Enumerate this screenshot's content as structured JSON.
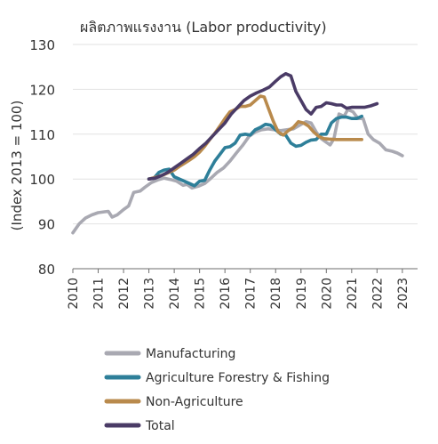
{
  "chart_data": {
    "type": "line",
    "title": "ผลิตภาพแรงงาน (Labor productivity)",
    "ylabel": "(Index 2013 = 100)",
    "xlabel": "",
    "ylim": [
      80,
      130
    ],
    "xlim": [
      2010,
      2023.6
    ],
    "yticks": [
      80,
      90,
      100,
      110,
      120,
      130
    ],
    "xticks": [
      "2010",
      "2011",
      "2012",
      "2013",
      "2014",
      "2015",
      "2016",
      "2017",
      "2018",
      "2019",
      "2020",
      "2021",
      "2022",
      "2023"
    ],
    "grid": "horizontal",
    "legend_position": "bottom",
    "series": [
      {
        "name": "Manufacturing",
        "color": "#a9a9b2",
        "points": [
          [
            2010.0,
            88.0
          ],
          [
            2010.25,
            90.0
          ],
          [
            2010.5,
            91.3
          ],
          [
            2010.75,
            92.0
          ],
          [
            2011.0,
            92.5
          ],
          [
            2011.25,
            92.7
          ],
          [
            2011.4,
            92.8
          ],
          [
            2011.55,
            91.5
          ],
          [
            2011.75,
            92.0
          ],
          [
            2012.0,
            93.2
          ],
          [
            2012.2,
            94.0
          ],
          [
            2012.4,
            97.0
          ],
          [
            2012.65,
            97.3
          ],
          [
            2012.85,
            98.2
          ],
          [
            2013.1,
            99.2
          ],
          [
            2013.35,
            99.8
          ],
          [
            2013.6,
            100.2
          ],
          [
            2013.85,
            99.9
          ],
          [
            2014.1,
            99.5
          ],
          [
            2014.35,
            98.6
          ],
          [
            2014.5,
            98.8
          ],
          [
            2014.7,
            98.0
          ],
          [
            2014.95,
            98.4
          ],
          [
            2015.2,
            99.0
          ],
          [
            2015.45,
            100.2
          ],
          [
            2015.7,
            101.5
          ],
          [
            2015.95,
            102.5
          ],
          [
            2016.2,
            104.0
          ],
          [
            2016.45,
            105.8
          ],
          [
            2016.7,
            107.5
          ],
          [
            2016.95,
            109.5
          ],
          [
            2017.2,
            110.5
          ],
          [
            2017.45,
            111.0
          ],
          [
            2017.7,
            111.2
          ],
          [
            2017.95,
            111.0
          ],
          [
            2018.2,
            110.8
          ],
          [
            2018.45,
            111.0
          ],
          [
            2018.7,
            111.2
          ],
          [
            2018.95,
            112.0
          ],
          [
            2019.2,
            112.8
          ],
          [
            2019.4,
            112.5
          ],
          [
            2019.6,
            110.5
          ],
          [
            2019.8,
            109.0
          ],
          [
            2020.0,
            108.2
          ],
          [
            2020.15,
            107.6
          ],
          [
            2020.3,
            109.0
          ],
          [
            2020.5,
            114.5
          ],
          [
            2020.7,
            114.0
          ],
          [
            2020.85,
            115.5
          ],
          [
            2021.05,
            115.0
          ],
          [
            2021.25,
            113.5
          ],
          [
            2021.45,
            113.5
          ],
          [
            2021.65,
            110.0
          ],
          [
            2021.85,
            108.8
          ],
          [
            2022.1,
            108.0
          ],
          [
            2022.35,
            106.5
          ],
          [
            2022.6,
            106.2
          ],
          [
            2022.8,
            105.8
          ],
          [
            2023.0,
            105.2
          ]
        ]
      },
      {
        "name": "Agriculture Forestry & Fishing",
        "color": "#2e7f99",
        "points": [
          [
            2013.0,
            100.0
          ],
          [
            2013.2,
            100.2
          ],
          [
            2013.4,
            101.5
          ],
          [
            2013.6,
            102.0
          ],
          [
            2013.8,
            102.2
          ],
          [
            2014.0,
            100.5
          ],
          [
            2014.2,
            100.0
          ],
          [
            2014.4,
            99.5
          ],
          [
            2014.6,
            99.0
          ],
          [
            2014.8,
            98.5
          ],
          [
            2015.0,
            99.5
          ],
          [
            2015.2,
            99.7
          ],
          [
            2015.4,
            102.0
          ],
          [
            2015.6,
            104.0
          ],
          [
            2015.8,
            105.5
          ],
          [
            2016.0,
            107.0
          ],
          [
            2016.2,
            107.2
          ],
          [
            2016.4,
            108.0
          ],
          [
            2016.6,
            109.8
          ],
          [
            2016.8,
            110.0
          ],
          [
            2017.0,
            109.8
          ],
          [
            2017.2,
            111.0
          ],
          [
            2017.4,
            111.5
          ],
          [
            2017.6,
            112.2
          ],
          [
            2017.8,
            112.0
          ],
          [
            2018.0,
            111.0
          ],
          [
            2018.2,
            110.0
          ],
          [
            2018.4,
            109.8
          ],
          [
            2018.6,
            108.0
          ],
          [
            2018.8,
            107.3
          ],
          [
            2019.0,
            107.5
          ],
          [
            2019.2,
            108.2
          ],
          [
            2019.4,
            108.7
          ],
          [
            2019.6,
            108.8
          ],
          [
            2019.8,
            110.0
          ],
          [
            2020.0,
            110.0
          ],
          [
            2020.2,
            112.5
          ],
          [
            2020.4,
            113.5
          ],
          [
            2020.6,
            113.8
          ],
          [
            2020.8,
            113.8
          ],
          [
            2021.0,
            113.5
          ],
          [
            2021.2,
            113.5
          ],
          [
            2021.4,
            114.0
          ]
        ]
      },
      {
        "name": "Non-Agriculture",
        "color": "#b98a4c",
        "points": [
          [
            2013.0,
            100.0
          ],
          [
            2013.2,
            100.3
          ],
          [
            2013.4,
            100.6
          ],
          [
            2013.6,
            101.0
          ],
          [
            2013.8,
            101.5
          ],
          [
            2014.0,
            102.0
          ],
          [
            2014.2,
            102.8
          ],
          [
            2014.4,
            103.5
          ],
          [
            2014.6,
            104.2
          ],
          [
            2014.8,
            105.0
          ],
          [
            2015.0,
            106.0
          ],
          [
            2015.2,
            107.3
          ],
          [
            2015.4,
            108.8
          ],
          [
            2015.6,
            110.2
          ],
          [
            2015.8,
            111.8
          ],
          [
            2016.0,
            113.5
          ],
          [
            2016.2,
            115.0
          ],
          [
            2016.4,
            115.5
          ],
          [
            2016.6,
            116.2
          ],
          [
            2016.8,
            116.2
          ],
          [
            2017.0,
            116.5
          ],
          [
            2017.2,
            117.5
          ],
          [
            2017.4,
            118.5
          ],
          [
            2017.55,
            118.3
          ],
          [
            2017.7,
            116.0
          ],
          [
            2017.9,
            113.0
          ],
          [
            2018.1,
            110.5
          ],
          [
            2018.3,
            109.8
          ],
          [
            2018.5,
            110.8
          ],
          [
            2018.7,
            111.5
          ],
          [
            2018.9,
            112.8
          ],
          [
            2019.1,
            112.5
          ],
          [
            2019.3,
            111.8
          ],
          [
            2019.5,
            110.5
          ],
          [
            2019.7,
            109.5
          ],
          [
            2019.9,
            109.0
          ],
          [
            2020.1,
            108.9
          ],
          [
            2020.4,
            108.8
          ],
          [
            2020.7,
            108.8
          ],
          [
            2021.0,
            108.8
          ],
          [
            2021.4,
            108.8
          ]
        ]
      },
      {
        "name": "Total",
        "color": "#4a3b66",
        "points": [
          [
            2013.0,
            100.0
          ],
          [
            2013.25,
            100.2
          ],
          [
            2013.5,
            100.8
          ],
          [
            2013.75,
            101.5
          ],
          [
            2014.0,
            102.5
          ],
          [
            2014.25,
            103.5
          ],
          [
            2014.5,
            104.5
          ],
          [
            2014.75,
            105.5
          ],
          [
            2015.0,
            106.8
          ],
          [
            2015.25,
            108.0
          ],
          [
            2015.5,
            109.5
          ],
          [
            2015.75,
            111.0
          ],
          [
            2016.0,
            112.5
          ],
          [
            2016.25,
            114.5
          ],
          [
            2016.5,
            116.0
          ],
          [
            2016.75,
            117.5
          ],
          [
            2017.0,
            118.5
          ],
          [
            2017.25,
            119.2
          ],
          [
            2017.5,
            119.8
          ],
          [
            2017.75,
            120.5
          ],
          [
            2018.0,
            121.8
          ],
          [
            2018.2,
            122.8
          ],
          [
            2018.4,
            123.5
          ],
          [
            2018.6,
            123.0
          ],
          [
            2018.8,
            119.5
          ],
          [
            2019.0,
            117.5
          ],
          [
            2019.2,
            115.5
          ],
          [
            2019.4,
            114.5
          ],
          [
            2019.6,
            116.0
          ],
          [
            2019.8,
            116.2
          ],
          [
            2020.0,
            117.0
          ],
          [
            2020.2,
            116.8
          ],
          [
            2020.4,
            116.5
          ],
          [
            2020.6,
            116.5
          ],
          [
            2020.8,
            115.8
          ],
          [
            2021.0,
            116.0
          ],
          [
            2021.25,
            116.0
          ],
          [
            2021.5,
            116.0
          ],
          [
            2021.75,
            116.3
          ],
          [
            2022.0,
            116.8
          ]
        ]
      }
    ]
  }
}
